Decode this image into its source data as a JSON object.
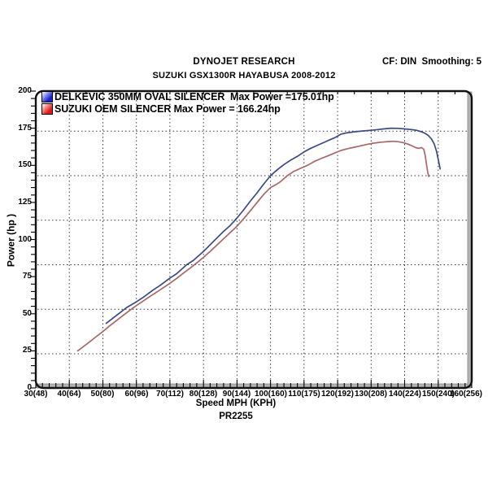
{
  "header": {
    "title": "DYNOJET RESEARCH",
    "subtitle": "SUZUKI GSX1300R HAYABUSA 2008-2012",
    "settings": "CF: DIN  Smoothing: 5"
  },
  "legend": [
    {
      "label": "DELKEVIC 350MM OVAL SILENCER  Max Power =175.01hp",
      "color": "#1520cf"
    },
    {
      "label": "SUZUKI OEM SILENCER Max Power = 166.24hp",
      "color": "#e01616"
    }
  ],
  "footer": {
    "run_id": "PR2255"
  },
  "chart_data": {
    "type": "line",
    "title": "DYNOJET RESEARCH",
    "subtitle": "SUZUKI GSX1300R HAYABUSA 2008-2012",
    "xlabel": "Speed MPH (KPH)",
    "ylabel": "Power (hp )",
    "footnote": "PR2255",
    "xlim": [
      30,
      160
    ],
    "ylim": [
      0,
      200
    ],
    "grid": true,
    "legend_position": "top-left",
    "x_ticks": [
      {
        "v": 30,
        "label": "30(48)"
      },
      {
        "v": 40,
        "label": "40(64)"
      },
      {
        "v": 50,
        "label": "50(80)"
      },
      {
        "v": 60,
        "label": "60(96)"
      },
      {
        "v": 70,
        "label": "70(112)"
      },
      {
        "v": 80,
        "label": "80(128)"
      },
      {
        "v": 90,
        "label": "90(144)"
      },
      {
        "v": 100,
        "label": "100(160)"
      },
      {
        "v": 110,
        "label": "110(175)"
      },
      {
        "v": 120,
        "label": "120(192)"
      },
      {
        "v": 130,
        "label": "130(208)"
      },
      {
        "v": 140,
        "label": "140(224)"
      },
      {
        "v": 150,
        "label": "150(240)"
      },
      {
        "v": 160,
        "label": "160(256)"
      }
    ],
    "y_ticks": [
      {
        "v": 200,
        "label": "200"
      },
      {
        "v": 175,
        "label": "175"
      },
      {
        "v": 150,
        "label": "150"
      },
      {
        "v": 125,
        "label": "125"
      },
      {
        "v": 100,
        "label": "100"
      },
      {
        "v": 75,
        "label": "75"
      },
      {
        "v": 50,
        "label": "50"
      },
      {
        "v": 25,
        "label": "25"
      },
      {
        "v": 0,
        "label": "0"
      }
    ],
    "vgrid_mph": [
      40,
      50,
      60,
      70,
      80,
      90,
      100,
      110,
      120,
      130,
      140,
      150
    ],
    "hgrid_hp": [
      23,
      53,
      83,
      113,
      143,
      173
    ],
    "series": [
      {
        "name": "DELKEVIC 350MM OVAL SILENCER",
        "max_power_hp": 175.01,
        "color": "#3c4a85",
        "points": [
          [
            51,
            43.5
          ],
          [
            53,
            47
          ],
          [
            55,
            50.5
          ],
          [
            57,
            54
          ],
          [
            60,
            58
          ],
          [
            62,
            61
          ],
          [
            65,
            66
          ],
          [
            67,
            69
          ],
          [
            70,
            74
          ],
          [
            72,
            77
          ],
          [
            75,
            83
          ],
          [
            77,
            86
          ],
          [
            80,
            92
          ],
          [
            82,
            96.5
          ],
          [
            84,
            101
          ],
          [
            86,
            105.5
          ],
          [
            88,
            109.5
          ],
          [
            90,
            114.5
          ],
          [
            92,
            120
          ],
          [
            94,
            126
          ],
          [
            96,
            131.5
          ],
          [
            98,
            137.5
          ],
          [
            100,
            143
          ],
          [
            102,
            147
          ],
          [
            104,
            150.5
          ],
          [
            106,
            153.5
          ],
          [
            108,
            156
          ],
          [
            110,
            159
          ],
          [
            112,
            161.5
          ],
          [
            114,
            163.5
          ],
          [
            116,
            165.5
          ],
          [
            118,
            167.5
          ],
          [
            119.5,
            169
          ],
          [
            121,
            171
          ],
          [
            122.5,
            171.8
          ],
          [
            124,
            172.3
          ],
          [
            126,
            172.8
          ],
          [
            128,
            173.2
          ],
          [
            130,
            173.6
          ],
          [
            132,
            174.1
          ],
          [
            134,
            174.6
          ],
          [
            136,
            175
          ],
          [
            138,
            174.9
          ],
          [
            140,
            174.5
          ],
          [
            142,
            174.1
          ],
          [
            143.5,
            173.6
          ],
          [
            145,
            172.6
          ],
          [
            146,
            171.6
          ],
          [
            147,
            170.2
          ],
          [
            148,
            167.8
          ],
          [
            148.8,
            164.5
          ],
          [
            149.5,
            159.5
          ],
          [
            150.1,
            153
          ],
          [
            150.6,
            147.5
          ]
        ]
      },
      {
        "name": "SUZUKI OEM SILENCER",
        "max_power_hp": 166.24,
        "color": "#a86868",
        "points": [
          [
            42.5,
            25
          ],
          [
            44,
            27.5
          ],
          [
            46,
            31
          ],
          [
            48,
            34.5
          ],
          [
            50,
            38
          ],
          [
            52,
            41.8
          ],
          [
            54,
            45.3
          ],
          [
            56,
            48.8
          ],
          [
            58,
            52.2
          ],
          [
            60,
            55.5
          ],
          [
            62,
            58.5
          ],
          [
            64,
            61.6
          ],
          [
            66,
            64.5
          ],
          [
            68,
            67.5
          ],
          [
            70,
            70.5
          ],
          [
            72,
            73.8
          ],
          [
            74,
            77.3
          ],
          [
            76,
            80.7
          ],
          [
            78,
            84.2
          ],
          [
            80,
            88
          ],
          [
            82,
            92
          ],
          [
            84,
            96.2
          ],
          [
            86,
            100.5
          ],
          [
            88,
            104.7
          ],
          [
            90,
            109
          ],
          [
            92,
            114
          ],
          [
            94,
            119.5
          ],
          [
            96,
            125
          ],
          [
            98,
            130.5
          ],
          [
            100,
            135
          ],
          [
            101.5,
            136.8
          ],
          [
            103,
            139
          ],
          [
            105,
            143
          ],
          [
            107,
            146
          ],
          [
            109,
            148
          ],
          [
            111,
            150
          ],
          [
            113,
            152.5
          ],
          [
            115,
            154.5
          ],
          [
            117,
            156.3
          ],
          [
            119,
            158.2
          ],
          [
            121,
            160
          ],
          [
            123,
            161.2
          ],
          [
            125,
            162.2
          ],
          [
            127,
            163.2
          ],
          [
            129,
            164.2
          ],
          [
            131,
            165
          ],
          [
            133,
            165.6
          ],
          [
            135,
            166
          ],
          [
            136.5,
            166.2
          ],
          [
            138,
            165.9
          ],
          [
            139.5,
            165.3
          ],
          [
            141,
            164.3
          ],
          [
            142.3,
            163
          ],
          [
            143.3,
            161.9
          ],
          [
            144.2,
            161.4
          ],
          [
            145,
            162
          ],
          [
            145.7,
            160.8
          ],
          [
            146.1,
            157
          ],
          [
            146.5,
            151
          ],
          [
            146.9,
            145
          ],
          [
            147.2,
            142.5
          ]
        ]
      }
    ]
  }
}
